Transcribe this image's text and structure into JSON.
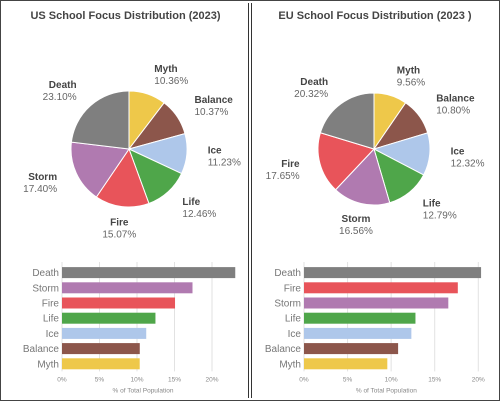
{
  "colors": {
    "Death": "#7f7f7f",
    "Storm": "#b07ab0",
    "Fire": "#e8545a",
    "Life": "#4fa64a",
    "Ice": "#aec7ea",
    "Balance": "#8c564b",
    "Myth": "#eec84a"
  },
  "chart_data": [
    {
      "type": "pie",
      "title": "US School Focus Distribution (2023)",
      "categories": [
        "Myth",
        "Balance",
        "Ice",
        "Life",
        "Fire",
        "Storm",
        "Death"
      ],
      "values": [
        10.36,
        10.37,
        11.23,
        12.46,
        15.07,
        17.4,
        23.1
      ],
      "labels": [
        "10.36%",
        "10.37%",
        "11.23%",
        "12.46%",
        "15.07%",
        "17.40%",
        "23.10%"
      ]
    },
    {
      "type": "bar",
      "orientation": "horizontal",
      "categories": [
        "Death",
        "Storm",
        "Fire",
        "Life",
        "Ice",
        "Balance",
        "Myth"
      ],
      "values": [
        23.1,
        17.4,
        15.07,
        12.46,
        11.23,
        10.37,
        10.36
      ],
      "xlabel": "% of Total Population",
      "xticks": [
        "0%",
        "5%",
        "10%",
        "15%",
        "20%"
      ],
      "xlim": [
        0,
        24
      ]
    },
    {
      "type": "pie",
      "title": "EU School Focus Distribution (2023 )",
      "categories": [
        "Myth",
        "Balance",
        "Ice",
        "Life",
        "Storm",
        "Fire",
        "Death"
      ],
      "values": [
        9.56,
        10.8,
        12.32,
        12.79,
        16.56,
        17.65,
        20.32
      ],
      "labels": [
        "9.56%",
        "10.80%",
        "12.32%",
        "12.79%",
        "16.56%",
        "17.65%",
        "20.32%"
      ]
    },
    {
      "type": "bar",
      "orientation": "horizontal",
      "categories": [
        "Death",
        "Fire",
        "Storm",
        "Life",
        "Ice",
        "Balance",
        "Myth"
      ],
      "values": [
        20.32,
        17.65,
        16.56,
        12.79,
        12.32,
        10.8,
        9.56
      ],
      "xlabel": "% of Total Population",
      "xticks": [
        "0%",
        "5%",
        "10%",
        "15%",
        "20%"
      ],
      "xlim": [
        0,
        21
      ]
    }
  ]
}
